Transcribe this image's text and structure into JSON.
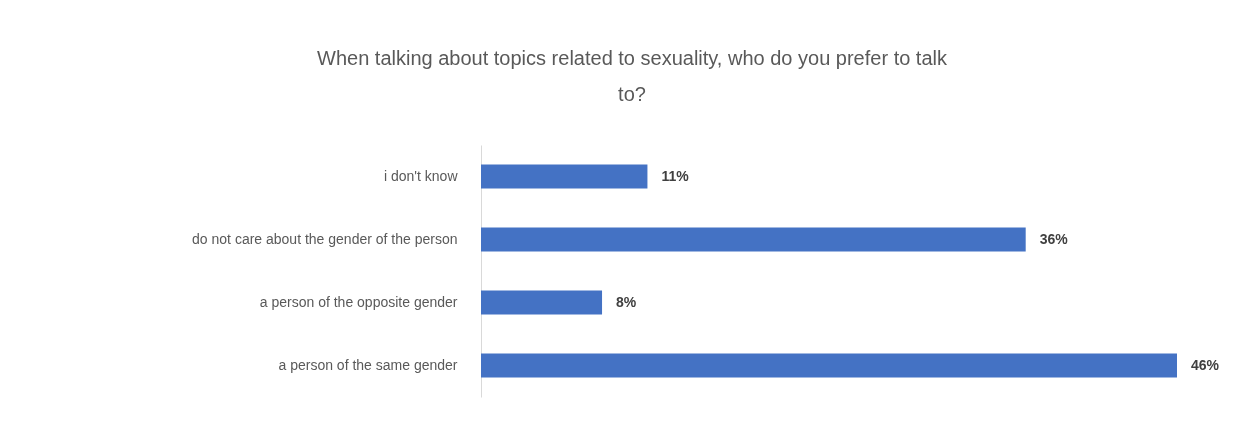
{
  "chart_data": {
    "type": "bar",
    "orientation": "horizontal",
    "title": "When talking about topics related to sexuality, who do you prefer to talk to?",
    "categories": [
      "i don't know",
      "do not care about the gender of the person",
      "a person of the opposite gender",
      "a person of the same gender"
    ],
    "values": [
      11,
      36,
      8,
      46
    ],
    "value_labels": [
      "11%",
      "36%",
      "8%",
      "46%"
    ],
    "color": "#4472c4",
    "grid": false
  }
}
